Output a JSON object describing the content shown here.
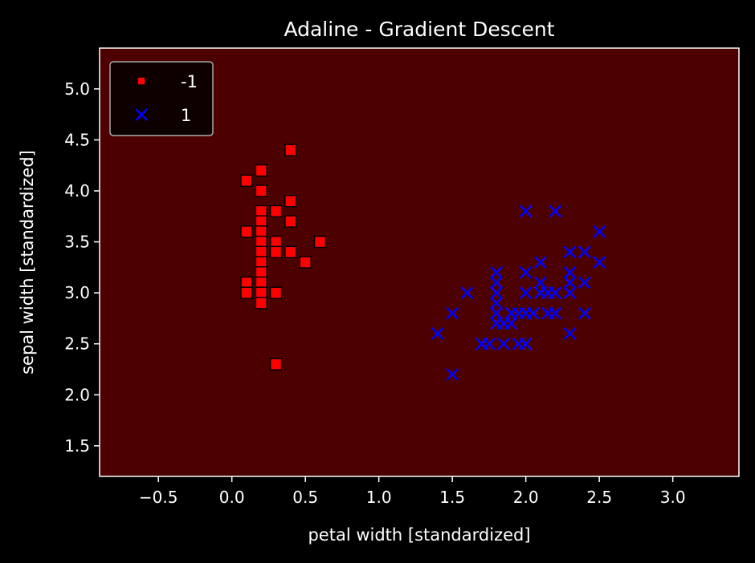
{
  "chart_data": {
    "type": "scatter",
    "title": "Adaline - Gradient Descent",
    "xlabel": "petal width [standardized]",
    "ylabel": "sepal width [standardized]",
    "xlim": [
      -0.9,
      3.45
    ],
    "ylim": [
      1.2,
      5.4
    ],
    "xticks": [
      -0.5,
      0.0,
      0.5,
      1.0,
      1.5,
      2.0,
      2.5,
      3.0
    ],
    "xtick_labels": [
      "−0.5",
      "0.0",
      "0.5",
      "1.0",
      "1.5",
      "2.0",
      "2.5",
      "3.0"
    ],
    "yticks": [
      1.5,
      2.0,
      2.5,
      3.0,
      3.5,
      4.0,
      4.5,
      5.0
    ],
    "ytick_labels": [
      "1.5",
      "2.0",
      "2.5",
      "3.0",
      "3.5",
      "4.0",
      "4.5",
      "5.0"
    ],
    "grid": false,
    "legend_position": "top-left",
    "background_color": "#000000",
    "plot_background_color": "#4d0000",
    "series": [
      {
        "name": "-1",
        "marker": "square",
        "color": "#ff0000",
        "edge_color": "#000000",
        "points": [
          [
            0.4,
            4.4
          ],
          [
            0.2,
            4.2
          ],
          [
            0.1,
            4.1
          ],
          [
            0.2,
            4.0
          ],
          [
            0.4,
            3.9
          ],
          [
            0.2,
            3.8
          ],
          [
            0.3,
            3.8
          ],
          [
            0.2,
            3.7
          ],
          [
            0.4,
            3.7
          ],
          [
            0.1,
            3.6
          ],
          [
            0.2,
            3.6
          ],
          [
            0.2,
            3.5
          ],
          [
            0.3,
            3.5
          ],
          [
            0.6,
            3.5
          ],
          [
            0.2,
            3.4
          ],
          [
            0.3,
            3.4
          ],
          [
            0.4,
            3.4
          ],
          [
            0.5,
            3.3
          ],
          [
            0.2,
            3.3
          ],
          [
            0.2,
            3.2
          ],
          [
            0.2,
            3.1
          ],
          [
            0.1,
            3.1
          ],
          [
            0.1,
            3.0
          ],
          [
            0.2,
            3.0
          ],
          [
            0.3,
            3.0
          ],
          [
            0.2,
            2.9
          ],
          [
            0.3,
            2.3
          ]
        ]
      },
      {
        "name": "1",
        "marker": "x",
        "color": "#0000ff",
        "points": [
          [
            2.0,
            3.8
          ],
          [
            2.2,
            3.8
          ],
          [
            2.5,
            3.6
          ],
          [
            2.3,
            3.4
          ],
          [
            2.4,
            3.4
          ],
          [
            2.1,
            3.3
          ],
          [
            2.5,
            3.3
          ],
          [
            1.8,
            3.2
          ],
          [
            2.0,
            3.2
          ],
          [
            2.3,
            3.2
          ],
          [
            1.8,
            3.1
          ],
          [
            2.4,
            3.1
          ],
          [
            2.1,
            3.1
          ],
          [
            2.3,
            3.1
          ],
          [
            1.6,
            3.0
          ],
          [
            1.8,
            3.0
          ],
          [
            2.0,
            3.0
          ],
          [
            2.1,
            3.0
          ],
          [
            2.15,
            3.0
          ],
          [
            2.2,
            3.0
          ],
          [
            2.3,
            3.0
          ],
          [
            1.8,
            2.9
          ],
          [
            1.5,
            2.8
          ],
          [
            1.8,
            2.8
          ],
          [
            1.9,
            2.8
          ],
          [
            1.95,
            2.8
          ],
          [
            2.0,
            2.8
          ],
          [
            2.05,
            2.8
          ],
          [
            2.15,
            2.8
          ],
          [
            2.2,
            2.8
          ],
          [
            2.4,
            2.8
          ],
          [
            1.8,
            2.7
          ],
          [
            1.9,
            2.7
          ],
          [
            1.85,
            2.7
          ],
          [
            1.4,
            2.6
          ],
          [
            2.3,
            2.6
          ],
          [
            1.7,
            2.5
          ],
          [
            1.75,
            2.5
          ],
          [
            1.85,
            2.5
          ],
          [
            1.95,
            2.5
          ],
          [
            2.0,
            2.5
          ],
          [
            1.5,
            2.2
          ]
        ]
      }
    ]
  }
}
